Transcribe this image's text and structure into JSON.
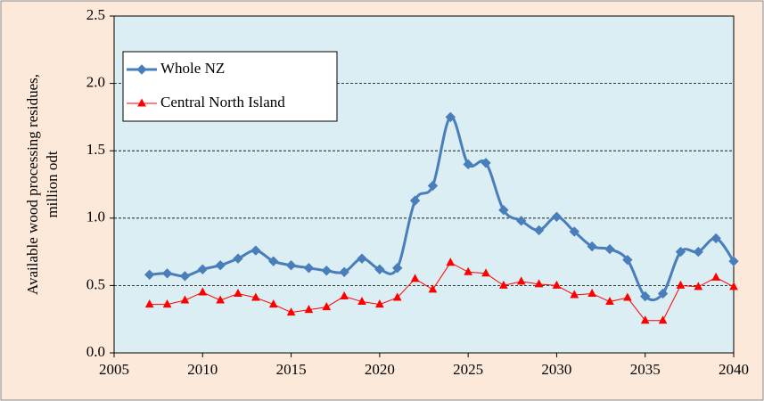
{
  "chart_data": {
    "type": "line",
    "y_label": [
      "Available wood processing residues,",
      "million odt"
    ],
    "x": [
      2007,
      2008,
      2009,
      2010,
      2011,
      2012,
      2013,
      2014,
      2015,
      2016,
      2017,
      2018,
      2019,
      2020,
      2021,
      2022,
      2023,
      2024,
      2025,
      2026,
      2027,
      2028,
      2029,
      2030,
      2031,
      2032,
      2033,
      2034,
      2035,
      2036,
      2037,
      2038,
      2039,
      2040
    ],
    "series": [
      {
        "name": "Whole NZ",
        "color": "#4a7ebb",
        "marker": "diamond",
        "smooth": true,
        "values": [
          0.58,
          0.59,
          0.57,
          0.62,
          0.65,
          0.7,
          0.76,
          0.68,
          0.65,
          0.63,
          0.61,
          0.6,
          0.7,
          0.62,
          0.63,
          1.13,
          1.24,
          1.75,
          1.4,
          1.41,
          1.06,
          0.98,
          0.91,
          1.01,
          0.9,
          0.79,
          0.77,
          0.69,
          0.42,
          0.44,
          0.75,
          0.75,
          0.85,
          0.68
        ]
      },
      {
        "name": "Central North Island",
        "color": "#ff0000",
        "marker": "triangle",
        "smooth": false,
        "values": [
          0.36,
          0.36,
          0.39,
          0.45,
          0.39,
          0.44,
          0.41,
          0.36,
          0.3,
          0.32,
          0.34,
          0.42,
          0.38,
          0.36,
          0.41,
          0.55,
          0.47,
          0.67,
          0.6,
          0.59,
          0.5,
          0.53,
          0.51,
          0.5,
          0.43,
          0.44,
          0.38,
          0.41,
          0.24,
          0.24,
          0.5,
          0.49,
          0.56,
          0.49
        ]
      }
    ],
    "xlim": [
      2005,
      2040
    ],
    "xticks": [
      2005,
      2010,
      2015,
      2020,
      2025,
      2030,
      2035,
      2040
    ],
    "ylim": [
      0,
      2.5
    ],
    "yticks": [
      {
        "value": 0,
        "label": "0.0"
      },
      0.5,
      {
        "value": 1,
        "label": "1.0"
      },
      1.5,
      {
        "value": 2,
        "label": "2.0"
      },
      2.5
    ],
    "grid": true,
    "legend": "upper left"
  }
}
